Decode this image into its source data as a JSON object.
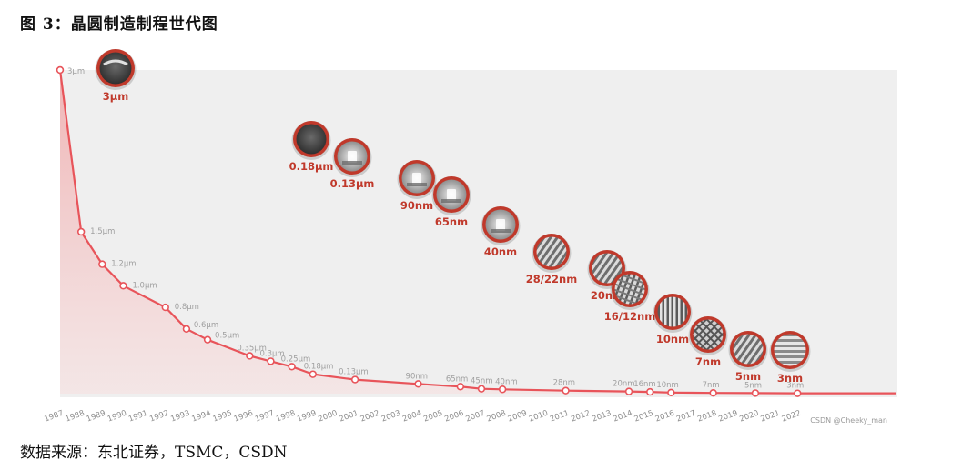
{
  "figure": {
    "title": "图 3：晶圆制造制程世代图",
    "source": "数据来源：东北证券，TSMC，CSDN",
    "watermark": "CSDN @Cheeky_man"
  },
  "colors": {
    "line": "#e8545a",
    "fill": "#f3c4c4",
    "panel": "#efefef",
    "label": "#a0a0a0",
    "node_label": "#c0392b",
    "ring": "#c0392b"
  },
  "chart_data": {
    "type": "line",
    "title": "",
    "xlabel": "",
    "ylabel": "",
    "ylim": [
      0,
      3
    ],
    "grid": false,
    "legend": "none",
    "x": [
      "1987",
      "1988",
      "1989",
      "1990",
      "1991",
      "1992",
      "1993",
      "1994",
      "1995",
      "1996",
      "1997",
      "1998",
      "1999",
      "2000",
      "2001",
      "2002",
      "2003",
      "2004",
      "2005",
      "2006",
      "2007",
      "2008",
      "2009",
      "2010",
      "2011",
      "2012",
      "2013",
      "2014",
      "2015",
      "2016",
      "2017",
      "2018",
      "2019",
      "2020",
      "2021",
      "2022"
    ],
    "points": [
      {
        "year": "1987",
        "value": 3,
        "label": "3μm"
      },
      {
        "year": "1988",
        "value": 1.5,
        "label": "1.5μm"
      },
      {
        "year": "1989",
        "value": 1.2,
        "label": "1.2μm"
      },
      {
        "year": "1990",
        "value": 1.0,
        "label": "1.0μm"
      },
      {
        "year": "1992",
        "value": 0.8,
        "label": "0.8μm"
      },
      {
        "year": "1993",
        "value": 0.6,
        "label": "0.6μm"
      },
      {
        "year": "1994",
        "value": 0.5,
        "label": "0.5μm"
      },
      {
        "year": "1996",
        "value": 0.35,
        "label": "0.35μm"
      },
      {
        "year": "1997",
        "value": 0.3,
        "label": "0.3μm"
      },
      {
        "year": "1998",
        "value": 0.25,
        "label": "0.25μm"
      },
      {
        "year": "1999",
        "value": 0.18,
        "label": "0.18μm"
      },
      {
        "year": "2001",
        "value": 0.13,
        "label": "0.13μm"
      },
      {
        "year": "2004",
        "value": 0.09,
        "label": "90nm"
      },
      {
        "year": "2006",
        "value": 0.065,
        "label": "65nm"
      },
      {
        "year": "2007",
        "value": 0.045,
        "label": "45nm"
      },
      {
        "year": "2008",
        "value": 0.04,
        "label": "40nm"
      },
      {
        "year": "2011",
        "value": 0.028,
        "label": "28nm"
      },
      {
        "year": "2014",
        "value": 0.02,
        "label": "20nm"
      },
      {
        "year": "2015",
        "value": 0.016,
        "label": "16nm"
      },
      {
        "year": "2016",
        "value": 0.01,
        "label": "10nm"
      },
      {
        "year": "2018",
        "value": 0.007,
        "label": "7nm"
      },
      {
        "year": "2020",
        "value": 0.005,
        "label": "5nm"
      },
      {
        "year": "2022",
        "value": 0.003,
        "label": "3nm"
      }
    ],
    "nodes": [
      {
        "label": "3μm",
        "texture": "dark-top"
      },
      {
        "label": "0.18μm",
        "texture": "dark"
      },
      {
        "label": "0.13μm",
        "texture": "gate"
      },
      {
        "label": "90nm",
        "texture": "gate"
      },
      {
        "label": "65nm",
        "texture": "gate"
      },
      {
        "label": "40nm",
        "texture": "gate"
      },
      {
        "label": "28/22nm",
        "texture": "diagonal"
      },
      {
        "label": "20nm",
        "texture": "diagonal"
      },
      {
        "label": "16/12nm",
        "texture": "grid"
      },
      {
        "label": "10nm",
        "texture": "vertical"
      },
      {
        "label": "7nm",
        "texture": "crosshatch"
      },
      {
        "label": "5nm",
        "texture": "diagonal"
      },
      {
        "label": "3nm",
        "texture": "horizontal"
      }
    ]
  }
}
